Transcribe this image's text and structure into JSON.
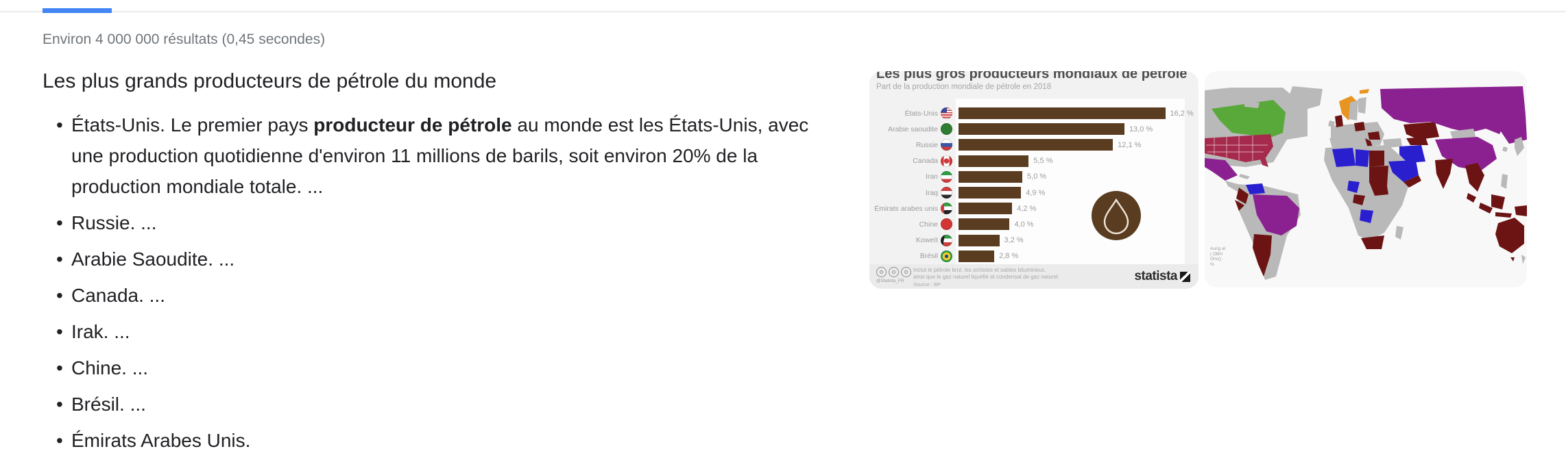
{
  "page": {
    "stats_text": "Environ 4 000 000 résultats (0,45 secondes)",
    "accent_color": "#4285f4"
  },
  "snippet": {
    "heading": "Les plus grands producteurs de pétrole du monde",
    "items": [
      {
        "segments": [
          {
            "text": "États-Unis. Le premier pays "
          },
          {
            "text": "producteur de pétrole",
            "bold": true
          },
          {
            "text": " au monde est les États-Unis, avec une production quotidienne d'environ 11 millions de barils, soit environ 20% de la production mondiale totale. ..."
          }
        ]
      },
      {
        "segments": [
          {
            "text": "Russie. ..."
          }
        ]
      },
      {
        "segments": [
          {
            "text": "Arabie Saoudite. ..."
          }
        ]
      },
      {
        "segments": [
          {
            "text": "Canada. ..."
          }
        ]
      },
      {
        "segments": [
          {
            "text": "Irak. ..."
          }
        ]
      },
      {
        "segments": [
          {
            "text": "Chine. ..."
          }
        ]
      },
      {
        "segments": [
          {
            "text": "Brésil. ..."
          }
        ]
      },
      {
        "segments": [
          {
            "text": "Émirats Arabes Unis."
          }
        ]
      }
    ]
  },
  "chart_data": [
    {
      "type": "bar",
      "title": "Les plus gros producteurs mondiaux de pétrole",
      "subtitle": "Part de la production mondiale de pétrole en 2018",
      "categories": [
        "États-Unis",
        "Arabie saoudite",
        "Russie",
        "Canada",
        "Iran",
        "Iraq",
        "Émirats arabes unis",
        "Chine",
        "Koweït",
        "Brésil"
      ],
      "values": [
        16.2,
        13.0,
        12.1,
        5.5,
        5.0,
        4.9,
        4.2,
        4.0,
        3.2,
        2.8
      ],
      "value_labels": [
        "16,2 %",
        "13,0 %",
        "12,1 %",
        "5,5 %",
        "5,0 %",
        "4,9 %",
        "4,2 %",
        "4,0 %",
        "3,2 %",
        "2,8 %"
      ],
      "flags": [
        "us",
        "sa",
        "ru",
        "ca",
        "ir",
        "iq",
        "ae",
        "cn",
        "kw",
        "br"
      ],
      "xlim": [
        0,
        18
      ],
      "bar_color": "#5a3c20",
      "footnote_lines": [
        "Inclut le pétrole brut, les schistes et sables bitumineux,",
        "ainsi que le gaz naturel liquéfié et condensat de gaz naturel."
      ],
      "source": "Source : BP",
      "cc_handle": "@Statista_FR",
      "brand": "statista"
    },
    {
      "type": "heatmap",
      "title": "",
      "colors": {
        "sea": "#f8f8f8",
        "gray": "#b9b9b9",
        "green": "#58a83a",
        "crimson": "#a62a4c",
        "purple": "#8b2190",
        "blue": "#2a1fcf",
        "maroon": "#6b1413",
        "orange": "#e89420"
      },
      "regions": {
        "green": [
          "Canada"
        ],
        "crimson": [
          "États-Unis"
        ],
        "purple": [
          "Russie",
          "Chine",
          "Brésil",
          "Mexique"
        ],
        "blue": [
          "Arabie saoudite",
          "Iran",
          "Algérie",
          "Libye",
          "Venezuela",
          "Angola",
          "Niger"
        ],
        "orange": [
          "Norvège"
        ],
        "maroon": [
          "Kazakhstan",
          "Inde",
          "Australie",
          "Argentine",
          "Égypte",
          "Soudan",
          "Afrique du Sud",
          "Indonésie",
          "Royaume-Uni",
          "Colombie",
          "Nigeria",
          "Oman",
          "Italie"
        ],
        "gray": [
          "autres pays"
        ]
      },
      "attribution_lines": [
        "Aung al",
        "( OBH",
        "Onc()",
        "%"
      ]
    }
  ]
}
